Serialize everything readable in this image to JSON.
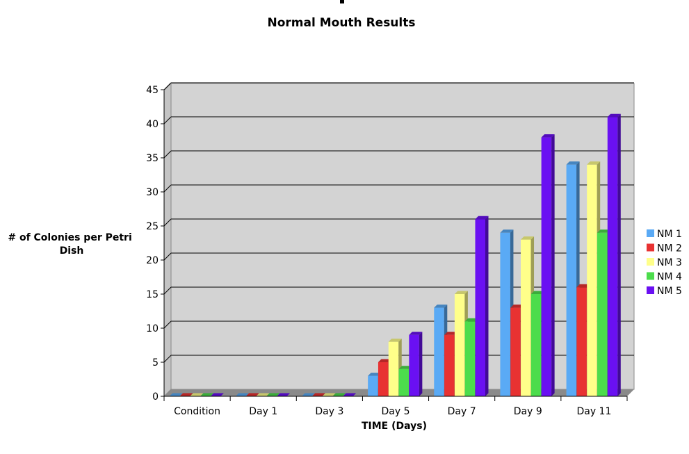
{
  "chart_data": {
    "type": "bar",
    "title": "Normal Mouth Results",
    "xlabel": "TIME (Days)",
    "ylabel": "# of Colonies per Petri Dish",
    "ylabel_lines": [
      "# of Colonies per Petri",
      "Dish"
    ],
    "categories": [
      "Condition",
      "Day 1",
      "Day 3",
      "Day 5",
      "Day 7",
      "Day 9",
      "Day 11"
    ],
    "ylim": [
      0,
      45
    ],
    "yticks": [
      0,
      5,
      10,
      15,
      20,
      25,
      30,
      35,
      40,
      45
    ],
    "grid": true,
    "legend_position": "right",
    "series": [
      {
        "name": "NM 1",
        "color": "#5aaaf5",
        "values": [
          0,
          0,
          0,
          3,
          13,
          24,
          34
        ]
      },
      {
        "name": "NM 2",
        "color": "#e83232",
        "values": [
          0,
          0,
          0,
          5,
          9,
          13,
          16
        ]
      },
      {
        "name": "NM 3",
        "color": "#ffff8a",
        "values": [
          0,
          0,
          0,
          8,
          15,
          23,
          34
        ]
      },
      {
        "name": "NM 4",
        "color": "#4cdc4c",
        "values": [
          0,
          0,
          0,
          4,
          11,
          15,
          24
        ]
      },
      {
        "name": "NM 5",
        "color": "#6a10f2",
        "values": [
          0,
          0,
          0,
          9,
          26,
          38,
          41
        ]
      }
    ]
  }
}
